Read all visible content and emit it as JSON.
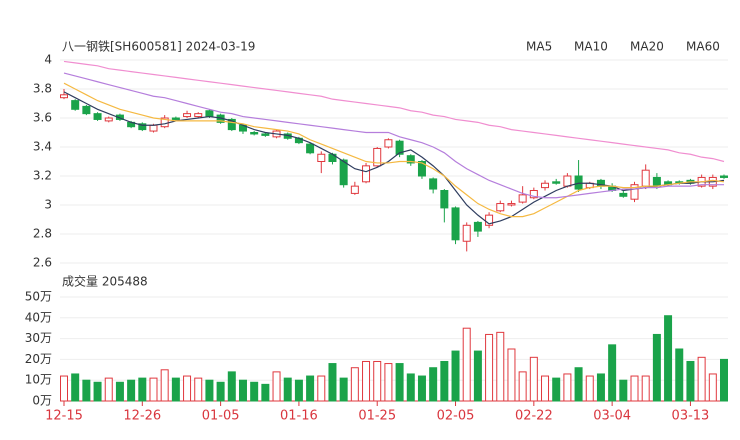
{
  "chart_data": {
    "type": "candlestick",
    "title": "八一钢铁[SH600581] 2024-03-19",
    "volume_title": "成交量 205488",
    "categories": [
      "12-15",
      null,
      null,
      null,
      null,
      null,
      null,
      "12-26",
      null,
      null,
      null,
      null,
      null,
      null,
      "01-05",
      null,
      null,
      null,
      null,
      null,
      null,
      "01-16",
      null,
      null,
      null,
      null,
      null,
      null,
      "01-25",
      null,
      null,
      null,
      null,
      null,
      null,
      "02-05",
      null,
      null,
      null,
      null,
      null,
      null,
      "02-22",
      null,
      null,
      null,
      null,
      null,
      null,
      "03-04",
      null,
      null,
      null,
      null,
      null,
      null,
      "03-13",
      null,
      null,
      null
    ],
    "open": [
      3.74,
      3.72,
      3.68,
      3.63,
      3.58,
      3.62,
      3.57,
      3.56,
      3.51,
      3.54,
      3.6,
      3.61,
      3.61,
      3.65,
      3.62,
      3.59,
      3.55,
      3.5,
      3.49,
      3.47,
      3.49,
      3.46,
      3.42,
      3.3,
      3.35,
      3.31,
      3.08,
      3.16,
      3.27,
      3.4,
      3.44,
      3.34,
      3.3,
      3.18,
      3.1,
      2.98,
      2.75,
      2.88,
      2.86,
      2.96,
      3.0,
      3.02,
      3.05,
      3.12,
      3.16,
      3.13,
      3.2,
      3.12,
      3.17,
      3.13,
      3.08,
      3.04,
      3.13,
      3.19,
      3.16,
      3.16,
      3.17,
      3.13,
      3.13,
      3.2
    ],
    "high": [
      3.8,
      3.73,
      3.69,
      3.64,
      3.61,
      3.63,
      3.58,
      3.57,
      3.56,
      3.62,
      3.61,
      3.65,
      3.64,
      3.66,
      3.63,
      3.6,
      3.56,
      3.51,
      3.5,
      3.52,
      3.5,
      3.47,
      3.43,
      3.37,
      3.36,
      3.32,
      3.16,
      3.29,
      3.4,
      3.46,
      3.45,
      3.35,
      3.31,
      3.19,
      3.11,
      2.99,
      2.88,
      2.89,
      2.95,
      3.03,
      3.03,
      3.13,
      3.12,
      3.17,
      3.18,
      3.22,
      3.31,
      3.16,
      3.18,
      3.15,
      3.1,
      3.16,
      3.28,
      3.22,
      3.17,
      3.17,
      3.18,
      3.21,
      3.21,
      3.21
    ],
    "low": [
      3.73,
      3.65,
      3.62,
      3.58,
      3.57,
      3.58,
      3.53,
      3.51,
      3.5,
      3.53,
      3.58,
      3.6,
      3.6,
      3.6,
      3.56,
      3.51,
      3.49,
      3.48,
      3.47,
      3.46,
      3.45,
      3.42,
      3.35,
      3.22,
      3.28,
      3.12,
      3.07,
      3.15,
      3.26,
      3.39,
      3.33,
      3.27,
      3.18,
      3.08,
      2.88,
      2.73,
      2.68,
      2.78,
      2.84,
      2.95,
      2.99,
      3.01,
      3.04,
      3.1,
      3.14,
      3.12,
      3.09,
      3.11,
      3.11,
      3.09,
      3.05,
      3.02,
      3.11,
      3.11,
      3.13,
      3.14,
      3.14,
      3.12,
      3.11,
      3.18
    ],
    "close": [
      3.76,
      3.66,
      3.63,
      3.59,
      3.6,
      3.59,
      3.54,
      3.52,
      3.55,
      3.6,
      3.59,
      3.63,
      3.63,
      3.61,
      3.57,
      3.52,
      3.51,
      3.49,
      3.48,
      3.51,
      3.46,
      3.43,
      3.36,
      3.35,
      3.3,
      3.14,
      3.13,
      3.27,
      3.39,
      3.45,
      3.35,
      3.29,
      3.2,
      3.11,
      2.98,
      2.76,
      2.86,
      2.82,
      2.93,
      3.01,
      3.01,
      3.07,
      3.1,
      3.15,
      3.15,
      3.2,
      3.11,
      3.15,
      3.13,
      3.1,
      3.06,
      3.14,
      3.24,
      3.13,
      3.14,
      3.15,
      3.15,
      3.19,
      3.19,
      3.19
    ],
    "volume": [
      12,
      13,
      10,
      9,
      11,
      9,
      10,
      11,
      11,
      15,
      11,
      12,
      11,
      10,
      9,
      14,
      10,
      9,
      8,
      14,
      11,
      10,
      12,
      12,
      18,
      11,
      16,
      19,
      19,
      18,
      18,
      13,
      12,
      16,
      19,
      24,
      35,
      24,
      32,
      33,
      25,
      14,
      21,
      12,
      11,
      13,
      16,
      12,
      13,
      27,
      10,
      12,
      12,
      32,
      41,
      25,
      19,
      21,
      13,
      20
    ],
    "up_color": "#e0383e",
    "down_color": "#1aa34a",
    "series": [
      {
        "name": "MA5",
        "color": "#2f3d5f",
        "values": [
          3.78,
          3.74,
          3.7,
          3.66,
          3.63,
          3.6,
          3.57,
          3.55,
          3.55,
          3.56,
          3.58,
          3.59,
          3.6,
          3.61,
          3.6,
          3.58,
          3.55,
          3.52,
          3.5,
          3.49,
          3.48,
          3.46,
          3.43,
          3.39,
          3.35,
          3.3,
          3.25,
          3.23,
          3.26,
          3.3,
          3.36,
          3.38,
          3.33,
          3.27,
          3.2,
          3.1,
          3.0,
          2.93,
          2.87,
          2.89,
          2.92,
          2.97,
          3.02,
          3.06,
          3.1,
          3.13,
          3.15,
          3.15,
          3.14,
          3.13,
          3.1,
          3.11,
          3.12,
          3.13,
          3.14,
          3.15,
          3.15,
          3.16,
          3.16,
          3.17
        ]
      },
      {
        "name": "MA10",
        "color": "#f5b942",
        "values": [
          3.84,
          3.8,
          3.76,
          3.72,
          3.69,
          3.66,
          3.64,
          3.62,
          3.6,
          3.59,
          3.58,
          3.58,
          3.58,
          3.58,
          3.58,
          3.57,
          3.56,
          3.54,
          3.53,
          3.52,
          3.51,
          3.49,
          3.45,
          3.42,
          3.39,
          3.36,
          3.33,
          3.3,
          3.29,
          3.29,
          3.3,
          3.3,
          3.29,
          3.25,
          3.2,
          3.13,
          3.07,
          3.01,
          2.97,
          2.94,
          2.92,
          2.92,
          2.94,
          2.98,
          3.02,
          3.06,
          3.1,
          3.12,
          3.13,
          3.13,
          3.12,
          3.12,
          3.13,
          3.13,
          3.14,
          3.15,
          3.16,
          3.16,
          3.17,
          3.16
        ]
      },
      {
        "name": "MA20",
        "color": "#b57edc",
        "values": [
          3.91,
          3.89,
          3.87,
          3.85,
          3.83,
          3.81,
          3.79,
          3.77,
          3.75,
          3.74,
          3.72,
          3.7,
          3.68,
          3.66,
          3.64,
          3.63,
          3.61,
          3.6,
          3.59,
          3.58,
          3.57,
          3.56,
          3.55,
          3.54,
          3.53,
          3.52,
          3.51,
          3.5,
          3.5,
          3.5,
          3.47,
          3.45,
          3.43,
          3.4,
          3.36,
          3.3,
          3.25,
          3.21,
          3.17,
          3.14,
          3.11,
          3.08,
          3.06,
          3.05,
          3.05,
          3.06,
          3.07,
          3.08,
          3.09,
          3.1,
          3.11,
          3.11,
          3.12,
          3.12,
          3.13,
          3.13,
          3.13,
          3.14,
          3.14,
          3.14
        ]
      },
      {
        "name": "MA60",
        "color": "#f08ed0",
        "values": [
          3.99,
          3.98,
          3.97,
          3.96,
          3.94,
          3.93,
          3.92,
          3.91,
          3.9,
          3.89,
          3.88,
          3.87,
          3.86,
          3.85,
          3.84,
          3.83,
          3.82,
          3.81,
          3.8,
          3.79,
          3.78,
          3.77,
          3.76,
          3.75,
          3.73,
          3.72,
          3.71,
          3.7,
          3.69,
          3.68,
          3.67,
          3.65,
          3.64,
          3.62,
          3.61,
          3.59,
          3.58,
          3.57,
          3.55,
          3.54,
          3.52,
          3.51,
          3.5,
          3.49,
          3.48,
          3.47,
          3.46,
          3.45,
          3.44,
          3.43,
          3.42,
          3.41,
          3.4,
          3.39,
          3.38,
          3.36,
          3.35,
          3.33,
          3.32,
          3.3
        ]
      }
    ],
    "ylim": [
      2.6,
      4
    ],
    "yticks": [
      2.6,
      2.8,
      3,
      3.2,
      3.4,
      3.6,
      3.8,
      4
    ],
    "volume_ylim": [
      0,
      50
    ],
    "volume_yticks": [
      {
        "value": 0,
        "label": "0万"
      },
      {
        "value": 10,
        "label": "10万"
      },
      {
        "value": 20,
        "label": "20万"
      },
      {
        "value": 30,
        "label": "30万"
      },
      {
        "value": 40,
        "label": "40万"
      },
      {
        "value": 50,
        "label": "50万"
      }
    ],
    "grid": true
  }
}
